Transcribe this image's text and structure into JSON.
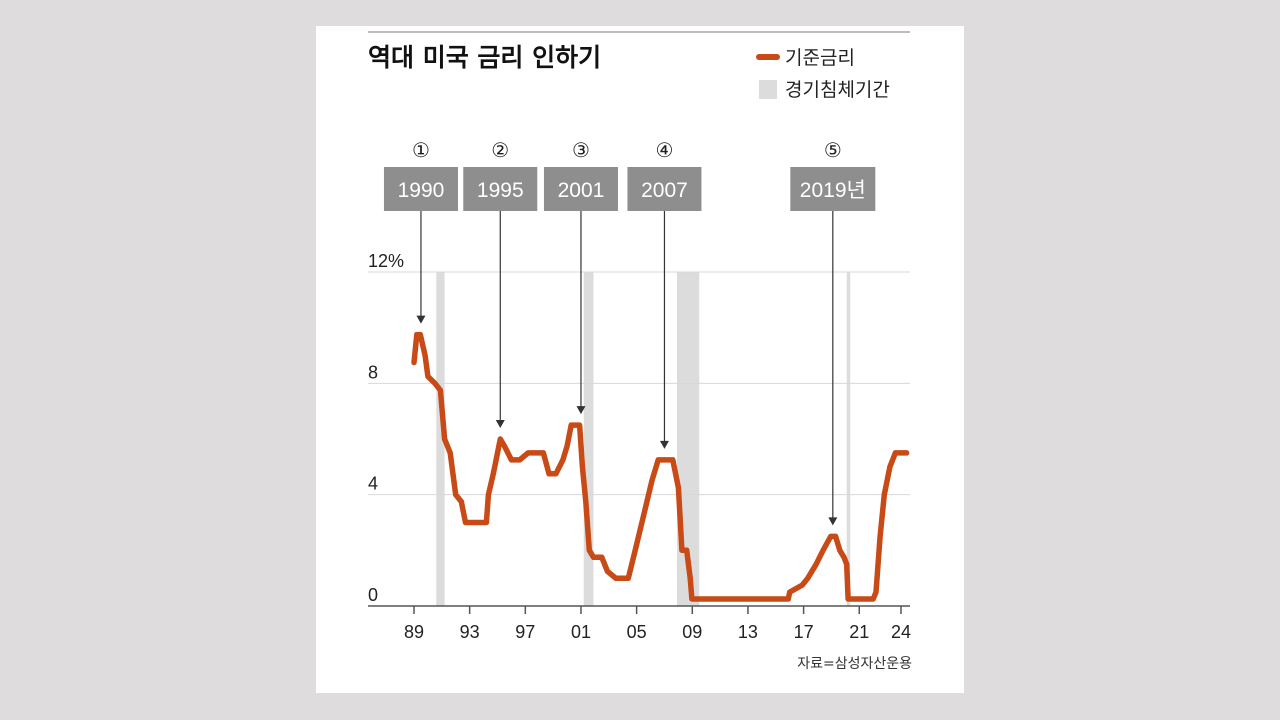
{
  "chart_data": {
    "type": "line",
    "title": "역대 미국 금리 인하기",
    "legend": [
      {
        "label": "기준금리",
        "color": "#c84a16",
        "kind": "line"
      },
      {
        "label": "경기침체기간",
        "color": "#dcdcdc",
        "kind": "box"
      }
    ],
    "series": [
      {
        "name": "기준금리",
        "color": "#c84a16",
        "points": [
          [
            1989.0,
            8.75
          ],
          [
            1989.2,
            9.75
          ],
          [
            1989.45,
            9.75
          ],
          [
            1989.8,
            9.0
          ],
          [
            1990.0,
            8.25
          ],
          [
            1990.5,
            8.0
          ],
          [
            1990.9,
            7.75
          ],
          [
            1991.2,
            6.0
          ],
          [
            1991.6,
            5.5
          ],
          [
            1992.0,
            4.0
          ],
          [
            1992.4,
            3.75
          ],
          [
            1992.7,
            3.0
          ],
          [
            1993.0,
            3.0
          ],
          [
            1993.5,
            3.0
          ],
          [
            1994.2,
            3.0
          ],
          [
            1994.35,
            4.0
          ],
          [
            1994.7,
            4.75
          ],
          [
            1995.0,
            5.5
          ],
          [
            1995.2,
            6.0
          ],
          [
            1995.5,
            5.75
          ],
          [
            1996.0,
            5.25
          ],
          [
            1996.6,
            5.25
          ],
          [
            1997.2,
            5.5
          ],
          [
            1997.9,
            5.5
          ],
          [
            1998.3,
            5.5
          ],
          [
            1998.7,
            4.75
          ],
          [
            1999.2,
            4.75
          ],
          [
            1999.7,
            5.25
          ],
          [
            2000.0,
            5.75
          ],
          [
            2000.3,
            6.5
          ],
          [
            2000.9,
            6.5
          ],
          [
            2001.1,
            5.0
          ],
          [
            2001.35,
            3.75
          ],
          [
            2001.6,
            2.0
          ],
          [
            2001.9,
            1.75
          ],
          [
            2002.5,
            1.75
          ],
          [
            2002.9,
            1.25
          ],
          [
            2003.5,
            1.0
          ],
          [
            2004.4,
            1.0
          ],
          [
            2004.9,
            2.0
          ],
          [
            2005.5,
            3.25
          ],
          [
            2006.1,
            4.5
          ],
          [
            2006.55,
            5.25
          ],
          [
            2007.6,
            5.25
          ],
          [
            2007.8,
            4.75
          ],
          [
            2008.0,
            4.25
          ],
          [
            2008.25,
            2.0
          ],
          [
            2008.6,
            2.0
          ],
          [
            2008.85,
            1.0
          ],
          [
            2008.97,
            0.25
          ],
          [
            2010.0,
            0.25
          ],
          [
            2012.0,
            0.25
          ],
          [
            2014.0,
            0.25
          ],
          [
            2015.9,
            0.25
          ],
          [
            2016.0,
            0.5
          ],
          [
            2016.9,
            0.75
          ],
          [
            2017.3,
            1.0
          ],
          [
            2017.9,
            1.5
          ],
          [
            2018.4,
            2.0
          ],
          [
            2018.95,
            2.5
          ],
          [
            2019.3,
            2.5
          ],
          [
            2019.6,
            2.0
          ],
          [
            2019.9,
            1.75
          ],
          [
            2020.1,
            1.5
          ],
          [
            2020.2,
            0.25
          ],
          [
            2021.0,
            0.25
          ],
          [
            2022.0,
            0.25
          ],
          [
            2022.2,
            0.5
          ],
          [
            2022.5,
            2.5
          ],
          [
            2022.8,
            4.0
          ],
          [
            2023.2,
            5.0
          ],
          [
            2023.6,
            5.5
          ],
          [
            2024.4,
            5.5
          ]
        ]
      }
    ],
    "recessions": [
      [
        1990.6,
        1991.2
      ],
      [
        2001.2,
        2001.9
      ],
      [
        2007.9,
        2009.5
      ],
      [
        2020.1,
        2020.35
      ]
    ],
    "events": [
      {
        "number": "①",
        "label": "1990",
        "x": 1989.5,
        "y": 9.75
      },
      {
        "number": "②",
        "label": "1995",
        "x": 1995.2,
        "y": 6.0
      },
      {
        "number": "③",
        "label": "2001",
        "x": 2001.0,
        "y": 6.5
      },
      {
        "number": "④",
        "label": "2007",
        "x": 2007.0,
        "y": 5.25
      },
      {
        "number": "⑤",
        "label": "2019년",
        "x": 2019.1,
        "y": 2.5
      }
    ],
    "x_ticks": [
      {
        "value": 1989,
        "label": "89"
      },
      {
        "value": 1993,
        "label": "93"
      },
      {
        "value": 1997,
        "label": "97"
      },
      {
        "value": 2001,
        "label": "01"
      },
      {
        "value": 2005,
        "label": "05"
      },
      {
        "value": 2009,
        "label": "09"
      },
      {
        "value": 2013,
        "label": "13"
      },
      {
        "value": 2017,
        "label": "17"
      },
      {
        "value": 2021,
        "label": "21"
      },
      {
        "value": 2024,
        "label": "24"
      }
    ],
    "y_ticks": [
      {
        "value": 0,
        "label": "0"
      },
      {
        "value": 4,
        "label": "4"
      },
      {
        "value": 8,
        "label": "8"
      },
      {
        "value": 12,
        "label": "12%"
      }
    ],
    "xlim": [
      1989,
      2024
    ],
    "ylim": [
      0,
      12
    ],
    "grid": true,
    "legend_position": "top-right",
    "source": "자료=삼성자산운용"
  }
}
